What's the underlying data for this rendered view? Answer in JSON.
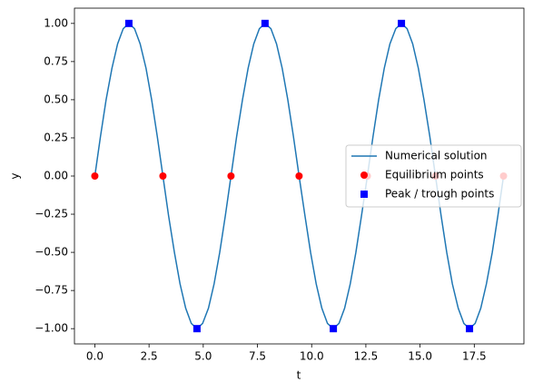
{
  "chart_data": {
    "type": "line",
    "xlabel": "t",
    "ylabel": "y",
    "xlim": [
      -0.94,
      19.79
    ],
    "ylim": [
      -1.1,
      1.1
    ],
    "xticks": [
      {
        "value": 0,
        "label": "0.0"
      },
      {
        "value": 2.5,
        "label": "2.5"
      },
      {
        "value": 5,
        "label": "5.0"
      },
      {
        "value": 7.5,
        "label": "7.5"
      },
      {
        "value": 10,
        "label": "10.0"
      },
      {
        "value": 12.5,
        "label": "12.5"
      },
      {
        "value": 15,
        "label": "15.0"
      },
      {
        "value": 17.5,
        "label": "17.5"
      }
    ],
    "yticks": [
      {
        "value": -1,
        "label": "−1.00"
      },
      {
        "value": -0.75,
        "label": "−0.75"
      },
      {
        "value": -0.5,
        "label": "−0.50"
      },
      {
        "value": -0.25,
        "label": "−0.25"
      },
      {
        "value": 0,
        "label": "0.00"
      },
      {
        "value": 0.25,
        "label": "0.25"
      },
      {
        "value": 0.5,
        "label": "0.50"
      },
      {
        "value": 0.75,
        "label": "0.75"
      },
      {
        "value": 1,
        "label": "1.00"
      }
    ],
    "legend_loc": "center right",
    "series": [
      {
        "name": "Numerical solution",
        "color": "#1f77b4",
        "marker": "none",
        "linestyle": "solid",
        "x": [
          0,
          0.26,
          0.52,
          0.79,
          1.05,
          1.31,
          1.57,
          1.83,
          2.09,
          2.36,
          2.62,
          2.88,
          3.14,
          3.4,
          3.67,
          3.93,
          4.19,
          4.45,
          4.71,
          4.97,
          5.24,
          5.5,
          5.76,
          6.02,
          6.28,
          6.54,
          6.81,
          7.07,
          7.33,
          7.59,
          7.85,
          8.12,
          8.38,
          8.64,
          8.9,
          9.16,
          9.42,
          9.69,
          9.95,
          10.21,
          10.47,
          10.73,
          11.0,
          11.26,
          11.52,
          11.78,
          12.04,
          12.3,
          12.57,
          12.83,
          13.09,
          13.35,
          13.61,
          13.88,
          14.14,
          14.4,
          14.66,
          14.92,
          15.18,
          15.45,
          15.71,
          15.97,
          16.23,
          16.49,
          16.76,
          17.02,
          17.28,
          17.54,
          17.8,
          18.06,
          18.33,
          18.59,
          18.85
        ],
        "values": [
          0,
          0.259,
          0.5,
          0.707,
          0.866,
          0.966,
          1,
          0.966,
          0.866,
          0.707,
          0.5,
          0.259,
          0,
          -0.259,
          -0.5,
          -0.707,
          -0.866,
          -0.966,
          -1,
          -0.966,
          -0.866,
          -0.707,
          -0.5,
          -0.259,
          0,
          0.259,
          0.5,
          0.707,
          0.866,
          0.966,
          1,
          0.966,
          0.866,
          0.707,
          0.5,
          0.259,
          0,
          -0.259,
          -0.5,
          -0.707,
          -0.866,
          -0.966,
          -1,
          -0.966,
          -0.866,
          -0.707,
          -0.5,
          -0.259,
          0,
          0.259,
          0.5,
          0.707,
          0.866,
          0.966,
          1,
          0.966,
          0.866,
          0.707,
          0.5,
          0.259,
          0,
          -0.259,
          -0.5,
          -0.707,
          -0.866,
          -0.966,
          -1,
          -0.966,
          -0.866,
          -0.707,
          -0.5,
          -0.259,
          0
        ]
      },
      {
        "name": "Equilibrium points",
        "color": "red",
        "marker": "o",
        "linestyle": "none",
        "x": [
          0,
          3.14,
          6.28,
          9.42,
          12.57,
          15.71,
          18.85
        ],
        "values": [
          0,
          0,
          0,
          0,
          0,
          0,
          0
        ]
      },
      {
        "name": "Peak / trough points",
        "color": "blue",
        "marker": "s",
        "linestyle": "none",
        "x": [
          1.57,
          4.71,
          7.85,
          11.0,
          14.14,
          17.28
        ],
        "values": [
          1,
          -1,
          1,
          -1,
          1,
          -1
        ]
      }
    ]
  }
}
